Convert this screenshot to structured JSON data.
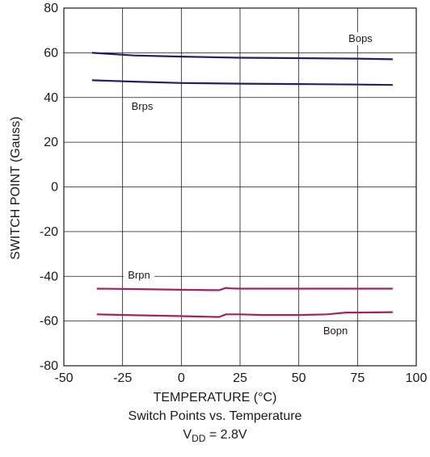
{
  "chart_data": {
    "type": "line",
    "title": "Switch Points vs. Temperature",
    "subtitle": {
      "main": "V",
      "sub": "DD",
      "rest": " = 2.8V"
    },
    "xlabel": "TEMPERATURE (°C)",
    "ylabel": "SWITCH POINT (Gauss)",
    "xlim": [
      -50,
      100
    ],
    "ylim": [
      -80,
      80
    ],
    "xticks": [
      "-50",
      "-25",
      "0",
      "25",
      "50",
      "75",
      "100"
    ],
    "yticks": [
      "80",
      "60",
      "40",
      "20",
      "0",
      "-20",
      "-40",
      "-60",
      "-80"
    ],
    "grid": true,
    "series": [
      {
        "name": "Bops",
        "color": "#1f1f6e",
        "x": [
          -38,
          -20,
          0,
          25,
          50,
          75,
          90
        ],
        "y": [
          60,
          58.8,
          58.3,
          57.8,
          57.6,
          57.4,
          57.1
        ]
      },
      {
        "name": "Brps",
        "color": "#1f1f6e",
        "x": [
          -38,
          -20,
          0,
          25,
          50,
          75,
          90
        ],
        "y": [
          47.7,
          47.1,
          46.5,
          46.2,
          46,
          45.8,
          45.6
        ]
      },
      {
        "name": "Brpn",
        "color": "#a0245f",
        "x": [
          -36,
          -20,
          0,
          16,
          19,
          21,
          25,
          50,
          75,
          90
        ],
        "y": [
          -45.5,
          -45.7,
          -46,
          -46.2,
          -45.2,
          -45.4,
          -45.5,
          -45.5,
          -45.5,
          -45.5
        ]
      },
      {
        "name": "Bopn",
        "color": "#a0245f",
        "x": [
          -36,
          -20,
          0,
          16,
          19,
          25,
          35,
          50,
          62,
          70,
          75,
          90
        ],
        "y": [
          -57,
          -57.4,
          -57.8,
          -58.2,
          -57,
          -57,
          -57.3,
          -57.3,
          -57,
          -56.2,
          -56.2,
          -56
        ]
      }
    ],
    "labels": [
      {
        "text": "Bops",
        "series": "Bops"
      },
      {
        "text": "Brps",
        "series": "Brps"
      },
      {
        "text": "Brpn",
        "series": "Brpn"
      },
      {
        "text": "Bopn",
        "series": "Bopn"
      }
    ]
  }
}
